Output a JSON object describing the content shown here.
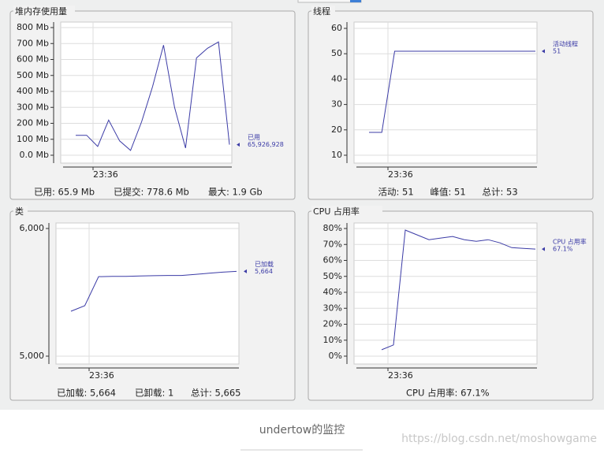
{
  "chart_data": [
    {
      "type": "line",
      "title": "堆内存使用量",
      "x_tick_label": "23:36",
      "series": [
        {
          "name": "已用",
          "color": "#3b3ba6",
          "end_label": "65,926,928",
          "values": [
            125,
            125,
            55,
            220,
            90,
            30,
            210,
            430,
            690,
            300,
            45,
            610,
            670,
            710,
            65.926928
          ]
        }
      ],
      "ylim": [
        0,
        800
      ],
      "yticks": [
        {
          "value": 0,
          "label": "0.0 Mb"
        },
        {
          "value": 100,
          "label": "100 Mb"
        },
        {
          "value": 200,
          "label": "200 Mb"
        },
        {
          "value": 300,
          "label": "300 Mb"
        },
        {
          "value": 400,
          "label": "400 Mb"
        },
        {
          "value": 500,
          "label": "500 Mb"
        },
        {
          "value": 600,
          "label": "600 Mb"
        },
        {
          "value": 700,
          "label": "700 Mb"
        },
        {
          "value": 800,
          "label": "800 Mb"
        }
      ],
      "grid": true,
      "summary": [
        "已用: 65.9 Mb",
        "已提交: 778.6 Mb",
        "最大: 1.9 Gb"
      ]
    },
    {
      "type": "line",
      "title": "线程",
      "x_tick_label": "23:36",
      "series": [
        {
          "name": "活动线程",
          "color": "#3b3ba6",
          "end_label": "51",
          "values": [
            19,
            19,
            51,
            51,
            51,
            51,
            51,
            51,
            51,
            51,
            51,
            51,
            51,
            51
          ]
        }
      ],
      "ylim": [
        10,
        60
      ],
      "yticks": [
        10,
        20,
        30,
        40,
        50,
        60
      ],
      "grid": true,
      "summary": [
        "活动: 51",
        "峰值: 51",
        "总计: 53"
      ]
    },
    {
      "type": "line",
      "title": "类",
      "x_tick_label": "23:36",
      "series": [
        {
          "name": "已加载",
          "color": "#3b3ba6",
          "end_label": "5,664",
          "values": [
            5352,
            5395,
            5623,
            5625,
            5625,
            5628,
            5630,
            5632,
            5632,
            5640,
            5650,
            5658,
            5664
          ]
        }
      ],
      "ylim": [
        5000,
        6000
      ],
      "yticks": [
        {
          "value": 5000,
          "label": "5,000"
        },
        {
          "value": 6000,
          "label": "6,000"
        }
      ],
      "grid": true,
      "summary": [
        "已加载: 5,664",
        "已卸载: 1",
        "总计: 5,665"
      ]
    },
    {
      "type": "line",
      "title": "CPU 占用率",
      "x_tick_label": "23:36",
      "series": [
        {
          "name": "CPU 占用率",
          "color": "#3b3ba6",
          "end_label": "67.1%",
          "values": [
            4,
            7,
            79,
            76,
            73,
            74,
            75,
            73,
            72,
            73,
            71,
            68,
            67.5,
            67.1
          ]
        }
      ],
      "ylim": [
        0,
        80
      ],
      "yticks": [
        {
          "value": 0,
          "label": "0%"
        },
        {
          "value": 10,
          "label": "10%"
        },
        {
          "value": 20,
          "label": "20%"
        },
        {
          "value": 30,
          "label": "30%"
        },
        {
          "value": 40,
          "label": "40%"
        },
        {
          "value": 50,
          "label": "50%"
        },
        {
          "value": 60,
          "label": "60%"
        },
        {
          "value": 70,
          "label": "70%"
        },
        {
          "value": 80,
          "label": "80%"
        }
      ],
      "grid": true,
      "summary": [
        "CPU 占用率: 67.1%"
      ]
    }
  ],
  "caption": "undertow的监控",
  "watermark": "https://blog.csdn.net/moshowgame"
}
